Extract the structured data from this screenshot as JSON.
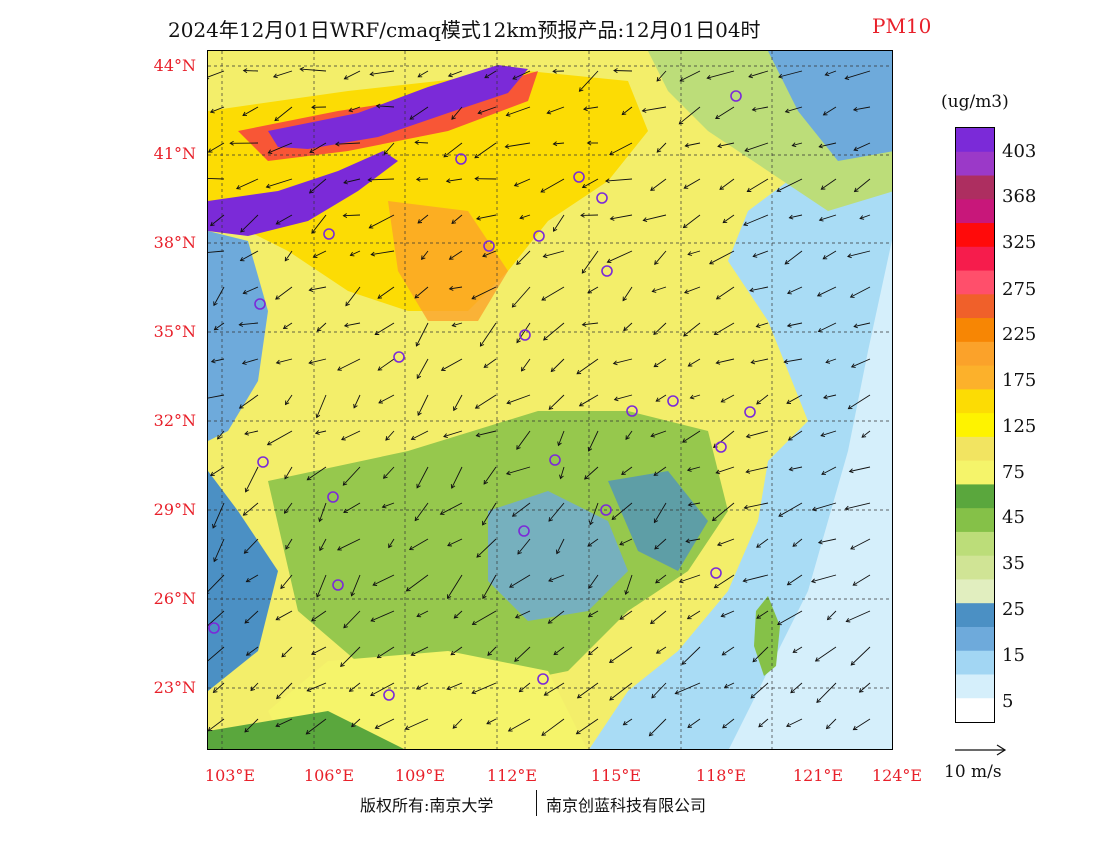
{
  "title": {
    "main": "2024年12月01日WRF/cmaq模式12km预报产品:12月01日04时",
    "pollutant": "PM10"
  },
  "colors": {
    "title_accent": "#e8202a",
    "land_base": "#f3ee6a",
    "sea": "#a9dcf5"
  },
  "map": {
    "lat_labels": [
      "44°N",
      "41°N",
      "38°N",
      "35°N",
      "32°N",
      "29°N",
      "26°N",
      "23°N"
    ],
    "lon_labels": [
      "103°E",
      "106°E",
      "109°E",
      "112°E",
      "115°E",
      "118°E",
      "121°E",
      "124°E"
    ],
    "wind_field": "arrows",
    "station_marker": "circle"
  },
  "legend": {
    "unit": "(ug/m3)",
    "labels": [
      "403",
      "368",
      "325",
      "275",
      "225",
      "175",
      "125",
      "75",
      "45",
      "35",
      "25",
      "15",
      "5"
    ],
    "colors": [
      "#7b2ad8",
      "#9b39c8",
      "#ad2e60",
      "#c8177a",
      "#ff0a0a",
      "#f61c4c",
      "#ff4f6b",
      "#f0602a",
      "#f78604",
      "#fba22a",
      "#fcb12b",
      "#fcdc04",
      "#fef300",
      "#f2e461",
      "#f5f46a",
      "#5aa73d",
      "#85c148",
      "#bcdd79",
      "#d0e495",
      "#e1eebf",
      "#4b90c4",
      "#6eaadb",
      "#a2d6f3",
      "#d5effb",
      "#ffffff"
    ]
  },
  "wind_reference": {
    "label": "10 m/s"
  },
  "footer": {
    "copyright": "版权所有:南京大学",
    "company": "南京创蓝科技有限公司"
  }
}
